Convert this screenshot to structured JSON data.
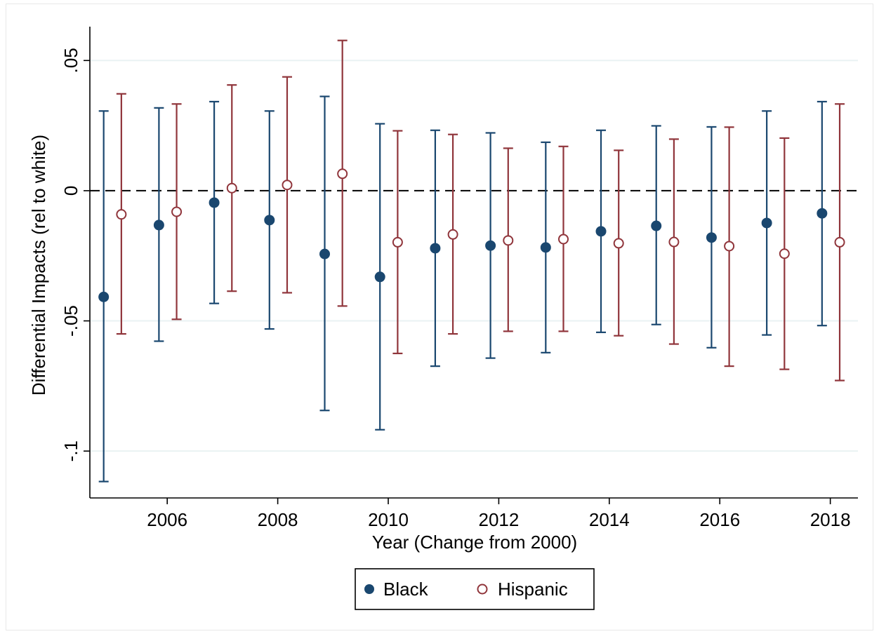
{
  "chart_data": {
    "type": "scatter",
    "subtype": "coefficient-plot-with-95-ci",
    "xlabel": "Year (Change from 2000)",
    "ylabel": "Differential Impacts (rel to white)",
    "xticks": [
      2006,
      2008,
      2010,
      2012,
      2014,
      2016,
      2018
    ],
    "yticks": [
      -0.1,
      -0.05,
      0,
      0.05
    ],
    "ytick_labels": [
      "-.1",
      "-.05",
      "0",
      ".05"
    ],
    "xlim": [
      2004.6,
      2018.5
    ],
    "ylim": [
      -0.118,
      0.063
    ],
    "grid": "horizontal",
    "reference_line": {
      "y": 0,
      "style": "dashed"
    },
    "legend_position": "bottom",
    "colors": {
      "Black": "#1a476f",
      "Hispanic": "#90353b"
    },
    "series": [
      {
        "name": "Black",
        "marker": "filled-circle",
        "x": [
          2005,
          2006,
          2007,
          2008,
          2009,
          2010,
          2011,
          2012,
          2013,
          2014,
          2015,
          2016,
          2017,
          2018
        ],
        "values": [
          -0.0408,
          -0.0132,
          -0.0046,
          -0.0113,
          -0.0243,
          -0.0331,
          -0.0221,
          -0.0211,
          -0.0218,
          -0.0156,
          -0.0135,
          -0.018,
          -0.0124,
          -0.0087
        ],
        "ci_low": [
          -0.1117,
          -0.0578,
          -0.0433,
          -0.0531,
          -0.0844,
          -0.0918,
          -0.0674,
          -0.0643,
          -0.0622,
          -0.0544,
          -0.0514,
          -0.0603,
          -0.0554,
          -0.0518
        ],
        "ci_high": [
          0.0306,
          0.0318,
          0.0342,
          0.0306,
          0.0362,
          0.0257,
          0.0232,
          0.0222,
          0.0186,
          0.0232,
          0.0249,
          0.0245,
          0.0306,
          0.0342
        ]
      },
      {
        "name": "Hispanic",
        "marker": "hollow-circle",
        "x": [
          2005,
          2006,
          2007,
          2008,
          2009,
          2010,
          2011,
          2012,
          2013,
          2014,
          2015,
          2016,
          2017,
          2018
        ],
        "values": [
          -0.0091,
          -0.0081,
          0.001,
          0.0022,
          0.0065,
          -0.0198,
          -0.0168,
          -0.0191,
          -0.0186,
          -0.0202,
          -0.0197,
          -0.0213,
          -0.0242,
          -0.0198
        ],
        "ci_low": [
          -0.055,
          -0.0494,
          -0.0386,
          -0.0392,
          -0.0443,
          -0.0625,
          -0.055,
          -0.054,
          -0.054,
          -0.0557,
          -0.0589,
          -0.0674,
          -0.0686,
          -0.0729
        ],
        "ci_high": [
          0.0372,
          0.0333,
          0.0406,
          0.0437,
          0.0577,
          0.023,
          0.0216,
          0.0163,
          0.017,
          0.0155,
          0.0198,
          0.0244,
          0.0202,
          0.0333
        ]
      }
    ],
    "legend": [
      {
        "label": "Black",
        "marker": "filled-circle"
      },
      {
        "label": "Hispanic",
        "marker": "hollow-circle"
      }
    ]
  }
}
